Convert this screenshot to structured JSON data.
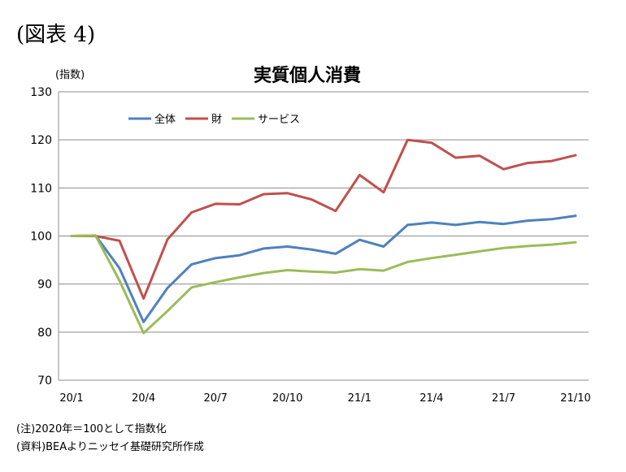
{
  "figure_label": "(図表 4)",
  "notes": [
    "(注)2020年＝100として指数化",
    "(資料)BEAよりニッセイ基礎研究所作成"
  ],
  "chart_data": {
    "type": "line",
    "title": "実質個人消費",
    "ylabel": "(指数)",
    "xlabel": "",
    "ylim": [
      70,
      130
    ],
    "yticks": [
      70,
      80,
      90,
      100,
      110,
      120,
      130
    ],
    "grid": true,
    "legend_position": "top-left",
    "x": [
      "20/1",
      "20/2",
      "20/3",
      "20/4",
      "20/5",
      "20/6",
      "20/7",
      "20/8",
      "20/9",
      "20/10",
      "20/11",
      "20/12",
      "21/1",
      "21/2",
      "21/3",
      "21/4",
      "21/5",
      "21/6",
      "21/7",
      "21/8",
      "21/9",
      "21/10"
    ],
    "x_tick_labels": [
      "20/1",
      "20/4",
      "20/7",
      "20/10",
      "21/1",
      "21/4",
      "21/7",
      "21/10"
    ],
    "x_tick_indices": [
      0,
      3,
      6,
      9,
      12,
      15,
      18,
      21
    ],
    "series": [
      {
        "name": "全体",
        "color": "#4f81bd",
        "values": [
          100,
          100.1,
          93.3,
          82.1,
          89.2,
          94.1,
          95.4,
          96.0,
          97.4,
          97.8,
          97.2,
          96.3,
          99.2,
          97.8,
          102.3,
          102.8,
          102.3,
          102.9,
          102.5,
          103.2,
          103.5,
          104.2
        ]
      },
      {
        "name": "財",
        "color": "#c0504d",
        "values": [
          100,
          100.0,
          99.0,
          87.0,
          99.3,
          104.9,
          106.7,
          106.6,
          108.7,
          108.9,
          107.6,
          105.2,
          112.7,
          109.1,
          120.0,
          119.4,
          116.3,
          116.7,
          113.9,
          115.2,
          115.6,
          116.8
        ]
      },
      {
        "name": "サービス",
        "color": "#9bbb59",
        "values": [
          100,
          100.1,
          90.7,
          79.8,
          84.4,
          89.3,
          90.4,
          91.4,
          92.3,
          92.9,
          92.6,
          92.4,
          93.1,
          92.8,
          94.6,
          95.4,
          96.1,
          96.8,
          97.5,
          97.9,
          98.2,
          98.7
        ]
      }
    ]
  }
}
